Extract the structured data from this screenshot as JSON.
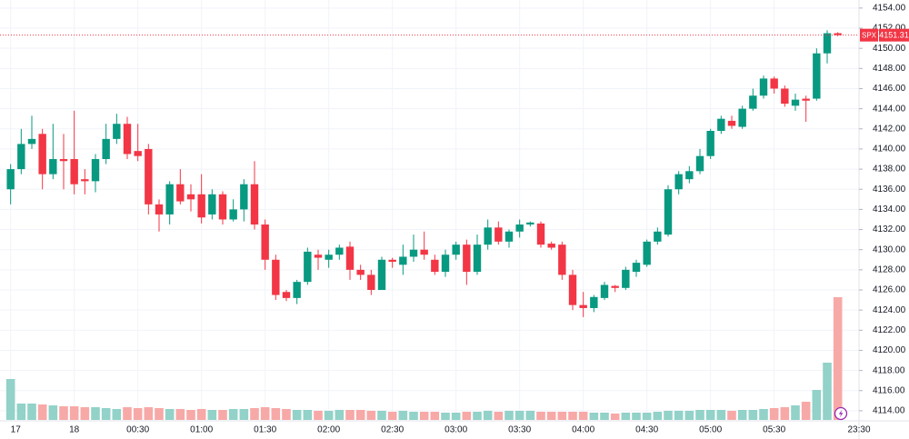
{
  "chart_data": {
    "type": "candlestick",
    "symbol": "SPX",
    "last_price": 4151.31,
    "up_color": "#089981",
    "down_color": "#f23645",
    "volume_up_color": "#92d2c8",
    "volume_down_color": "#f7a9a7",
    "xlim": [
      -1,
      80
    ],
    "xticks": [
      {
        "value": 0,
        "label": "17"
      },
      {
        "value": 6,
        "label": "18"
      },
      {
        "value": 12,
        "label": "00:30"
      },
      {
        "value": 18,
        "label": "01:00"
      },
      {
        "value": 24,
        "label": "01:30"
      },
      {
        "value": 30,
        "label": "02:00"
      },
      {
        "value": 36,
        "label": "02:30"
      },
      {
        "value": 42,
        "label": "03:00"
      },
      {
        "value": 48,
        "label": "03:30"
      },
      {
        "value": 54,
        "label": "04:00"
      },
      {
        "value": 60,
        "label": "04:30"
      },
      {
        "value": 66,
        "label": "05:00"
      },
      {
        "value": 72,
        "label": "05:30"
      },
      {
        "value": 80,
        "label": "23:30"
      }
    ],
    "ylim": [
      4113.0,
      4154.8
    ],
    "yticks": [
      {
        "value": 4114,
        "label": "4114.00"
      },
      {
        "value": 4116,
        "label": "4116.00"
      },
      {
        "value": 4118,
        "label": "4118.00"
      },
      {
        "value": 4120,
        "label": "4120.00"
      },
      {
        "value": 4122,
        "label": "4122.00"
      },
      {
        "value": 4124,
        "label": "4124.00"
      },
      {
        "value": 4126,
        "label": "4126.00"
      },
      {
        "value": 4128,
        "label": "4128.00"
      },
      {
        "value": 4130,
        "label": "4130.00"
      },
      {
        "value": 4132,
        "label": "4132.00"
      },
      {
        "value": 4134,
        "label": "4134.00"
      },
      {
        "value": 4136,
        "label": "4136.00"
      },
      {
        "value": 4138,
        "label": "4138.00"
      },
      {
        "value": 4140,
        "label": "4140.00"
      },
      {
        "value": 4142,
        "label": "4142.00"
      },
      {
        "value": 4144,
        "label": "4144.00"
      },
      {
        "value": 4146,
        "label": "4146.00"
      },
      {
        "value": 4148,
        "label": "4148.00"
      },
      {
        "value": 4150,
        "label": "4150.00"
      },
      {
        "value": 4152,
        "label": "4152.00"
      },
      {
        "value": 4154,
        "label": "4154.00"
      }
    ],
    "grid": true,
    "open": [
      4136,
      4138,
      4140.5,
      4141.5,
      4137.5,
      4139,
      4139,
      4137,
      4136.8,
      4139,
      4141,
      4142.5,
      4139.8,
      4140,
      4134.5,
      4133.5,
      4136.5,
      4135.5,
      4135.5,
      4133.5,
      4135.5,
      4133,
      4134,
      4136.5,
      4132.5,
      4129,
      4125.8,
      4125.2,
      4126.8,
      4129.5,
      4129,
      4129.5,
      4130.3,
      4128,
      4127.5,
      4126,
      4129,
      4128.5,
      4129.3,
      4130,
      4129,
      4127.8,
      4129.5,
      4130.5,
      4127.8,
      4130.5,
      4132.2,
      4130.8,
      4131.8,
      4132.5,
      4132.6,
      4130.6,
      4130.5,
      4127.5,
      4124.5,
      4124.2,
      4125.2,
      4126.4,
      4126.2,
      4127.8,
      4128.5,
      4130.8,
      4131.5,
      4136,
      4137,
      4137.8,
      4139.3,
      4141.8,
      4142.8,
      4142.2,
      4144,
      4145.3,
      4147,
      4146,
      4144.3,
      4145,
      4145,
      4149.5,
      4151.5
    ],
    "high": [
      4138.5,
      4142,
      4143.3,
      4142,
      4142.5,
      4141.5,
      4143.8,
      4138,
      4139.5,
      4142.5,
      4143.5,
      4143.2,
      4142.5,
      4140.5,
      4135,
      4136.8,
      4138,
      4136.5,
      4137.5,
      4136,
      4135.8,
      4135,
      4137,
      4138.8,
      4133,
      4129.5,
      4126,
      4127,
      4130.2,
      4130,
      4130,
      4130.5,
      4130.8,
      4128.5,
      4128,
      4129.3,
      4129.2,
      4130.5,
      4131.5,
      4131.8,
      4129.5,
      4130,
      4130.8,
      4131,
      4131.5,
      4133,
      4132.8,
      4132,
      4133,
      4132.8,
      4132.8,
      4130.8,
      4130.8,
      4128,
      4125.8,
      4125.5,
      4126.8,
      4126.5,
      4128.3,
      4129,
      4131,
      4132.2,
      4136.4,
      4137.8,
      4138.3,
      4140,
      4142,
      4143.3,
      4143.3,
      4144.3,
      4146,
      4147.3,
      4147.2,
      4146.3,
      4145.5,
      4145.3,
      4150,
      4151.8,
      4151.6
    ],
    "low": [
      4134.5,
      4137.5,
      4140,
      4136,
      4137,
      4136,
      4135.5,
      4135.5,
      4135.7,
      4138.5,
      4140.5,
      4139,
      4138.8,
      4133.5,
      4131.8,
      4132.5,
      4134.5,
      4133.8,
      4132.6,
      4133,
      4132.5,
      4132.8,
      4132.8,
      4132,
      4128,
      4125,
      4124.9,
      4124.6,
      4126.5,
      4128,
      4128.2,
      4129,
      4127,
      4127,
      4125.5,
      4126,
      4128.2,
      4127.5,
      4128.8,
      4129,
      4127.5,
      4127.3,
      4129,
      4126.5,
      4127.5,
      4130,
      4130.5,
      4130.2,
      4131.2,
      4132.3,
      4130.2,
      4130,
      4127,
      4124,
      4123.3,
      4123.8,
      4125,
      4125.8,
      4126,
      4127.3,
      4128.3,
      4130.5,
      4131.3,
      4135.5,
      4136.6,
      4137.5,
      4139,
      4141.5,
      4142,
      4142,
      4143.8,
      4145,
      4145.5,
      4144.2,
      4143.8,
      4142.7,
      4144.8,
      4148.5,
      4151.2
    ],
    "close": [
      4138,
      4140.5,
      4141,
      4137.5,
      4139,
      4138.8,
      4136.5,
      4136.8,
      4139,
      4141,
      4142.5,
      4139.5,
      4139.3,
      4134.5,
      4133.5,
      4136.5,
      4134.8,
      4135,
      4133.2,
      4135.5,
      4133,
      4134,
      4136.5,
      4132.5,
      4129,
      4125.5,
      4125.2,
      4126.8,
      4129.8,
      4129.2,
      4129.5,
      4130.2,
      4128,
      4127.5,
      4126,
      4129,
      4128.8,
      4129.3,
      4130,
      4129.5,
      4127.8,
      4129.5,
      4130.5,
      4127.8,
      4130.5,
      4132.2,
      4130.8,
      4131.8,
      4132.5,
      4132.7,
      4130.5,
      4130.2,
      4127.5,
      4124.5,
      4124.2,
      4125.3,
      4126.5,
      4126.2,
      4128,
      4128.7,
      4130.8,
      4131.8,
      4136,
      4137.5,
      4137.8,
      4139.3,
      4141.8,
      4143,
      4142.3,
      4144,
      4145.3,
      4147,
      4146,
      4144.5,
      4144.9,
      4144.8,
      4149.5,
      4151.5,
      4151.31
    ],
    "volume": [
      45,
      18,
      18,
      17,
      16,
      15,
      15,
      14,
      14,
      13,
      12,
      14,
      13,
      14,
      13,
      12,
      12,
      11,
      12,
      11,
      11,
      12,
      12,
      13,
      14,
      13,
      12,
      11,
      11,
      10,
      10,
      11,
      11,
      11,
      10,
      10,
      9,
      10,
      9,
      9,
      9,
      8,
      8,
      9,
      9,
      10,
      9,
      10,
      10,
      10,
      9,
      9,
      9,
      9,
      9,
      8,
      8,
      7,
      8,
      8,
      8,
      9,
      10,
      10,
      10,
      11,
      11,
      11,
      10,
      11,
      11,
      12,
      13,
      14,
      16,
      20,
      33,
      63,
      135
    ]
  }
}
